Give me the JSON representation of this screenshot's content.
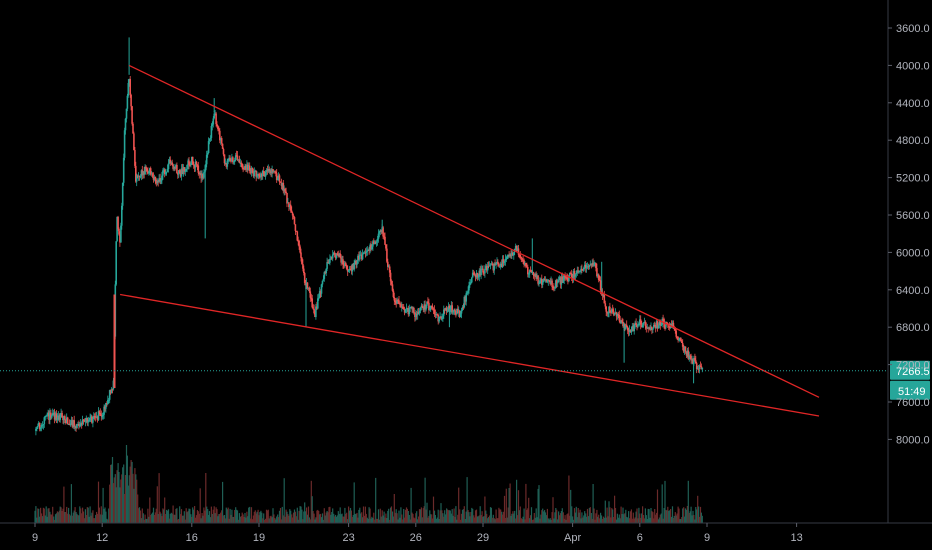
{
  "chart_data": {
    "type": "candlestick",
    "y_axis": {
      "scale": "inverted",
      "ticks": [
        "3600.0",
        "4000.0",
        "4400.0",
        "4800.0",
        "5200.0",
        "5600.0",
        "6000.0",
        "6400.0",
        "6800.0",
        "7200.0",
        "7600.0",
        "8000.0"
      ],
      "tick_values": [
        3600,
        4000,
        4400,
        4800,
        5200,
        5600,
        6000,
        6400,
        6800,
        7200,
        7600,
        8000
      ]
    },
    "x_axis": {
      "ticks": [
        "9",
        "12",
        "16",
        "19",
        "23",
        "26",
        "29",
        "Apr",
        "6",
        "9",
        "13"
      ],
      "tick_days": [
        9,
        12,
        16,
        19,
        23,
        26,
        29,
        33,
        36,
        39,
        43
      ]
    },
    "last_price": "7266.5",
    "countdown": "51:49",
    "price_path": [
      [
        9.0,
        7910
      ],
      [
        9.6,
        7750
      ],
      [
        10.2,
        7760
      ],
      [
        10.8,
        7840
      ],
      [
        11.5,
        7790
      ],
      [
        12.0,
        7720
      ],
      [
        12.5,
        7400
      ],
      [
        12.6,
        6100
      ],
      [
        12.65,
        5600
      ],
      [
        12.8,
        5950
      ],
      [
        13.0,
        4700
      ],
      [
        13.2,
        4100
      ],
      [
        13.5,
        5200
      ],
      [
        14.0,
        5100
      ],
      [
        14.5,
        5250
      ],
      [
        15.0,
        5050
      ],
      [
        15.5,
        5150
      ],
      [
        16.0,
        5000
      ],
      [
        16.5,
        5200
      ],
      [
        17.0,
        4500
      ],
      [
        17.5,
        5050
      ],
      [
        18.0,
        5000
      ],
      [
        18.5,
        5100
      ],
      [
        19.0,
        5200
      ],
      [
        19.5,
        5100
      ],
      [
        20.0,
        5250
      ],
      [
        20.6,
        5700
      ],
      [
        21.0,
        6250
      ],
      [
        21.5,
        6650
      ],
      [
        22.0,
        6150
      ],
      [
        22.5,
        6000
      ],
      [
        23.0,
        6200
      ],
      [
        23.5,
        6050
      ],
      [
        24.0,
        5950
      ],
      [
        24.5,
        5750
      ],
      [
        25.0,
        6500
      ],
      [
        25.5,
        6600
      ],
      [
        26.0,
        6650
      ],
      [
        26.5,
        6550
      ],
      [
        27.0,
        6700
      ],
      [
        27.5,
        6600
      ],
      [
        28.0,
        6650
      ],
      [
        28.5,
        6250
      ],
      [
        29.0,
        6200
      ],
      [
        29.5,
        6150
      ],
      [
        30.0,
        6100
      ],
      [
        30.5,
        5950
      ],
      [
        31.0,
        6200
      ],
      [
        31.5,
        6300
      ],
      [
        32.0,
        6350
      ],
      [
        32.5,
        6300
      ],
      [
        33.0,
        6250
      ],
      [
        33.5,
        6150
      ],
      [
        34.0,
        6150
      ],
      [
        34.5,
        6600
      ],
      [
        35.0,
        6700
      ],
      [
        35.5,
        6850
      ],
      [
        36.0,
        6750
      ],
      [
        36.5,
        6800
      ],
      [
        37.0,
        6750
      ],
      [
        37.5,
        6800
      ],
      [
        38.0,
        7050
      ],
      [
        38.5,
        7200
      ],
      [
        38.8,
        7266.5
      ]
    ],
    "wicks": [
      [
        13.2,
        3700
      ],
      [
        21.1,
        6800
      ],
      [
        17.0,
        4350
      ],
      [
        24.5,
        5650
      ],
      [
        27.5,
        6800
      ],
      [
        31.2,
        5850
      ],
      [
        34.3,
        6100
      ],
      [
        35.3,
        7180
      ],
      [
        38.4,
        7400
      ],
      [
        16.6,
        5850
      ]
    ],
    "trendlines": [
      {
        "from": [
          13.2,
          4000
        ],
        "to": [
          44.0,
          7550
        ],
        "color": "#e02626"
      },
      {
        "from": [
          12.8,
          6450
        ],
        "to": [
          44.0,
          7750
        ],
        "color": "#e02626"
      }
    ],
    "colors": {
      "up": "#26a69a",
      "down": "#ef5350",
      "trendline": "#e02626",
      "last_price_line": "#26a69a",
      "price_tag": "#26a69a",
      "volume_up": "#1f5f55",
      "volume_down": "#6b2a2a"
    }
  }
}
